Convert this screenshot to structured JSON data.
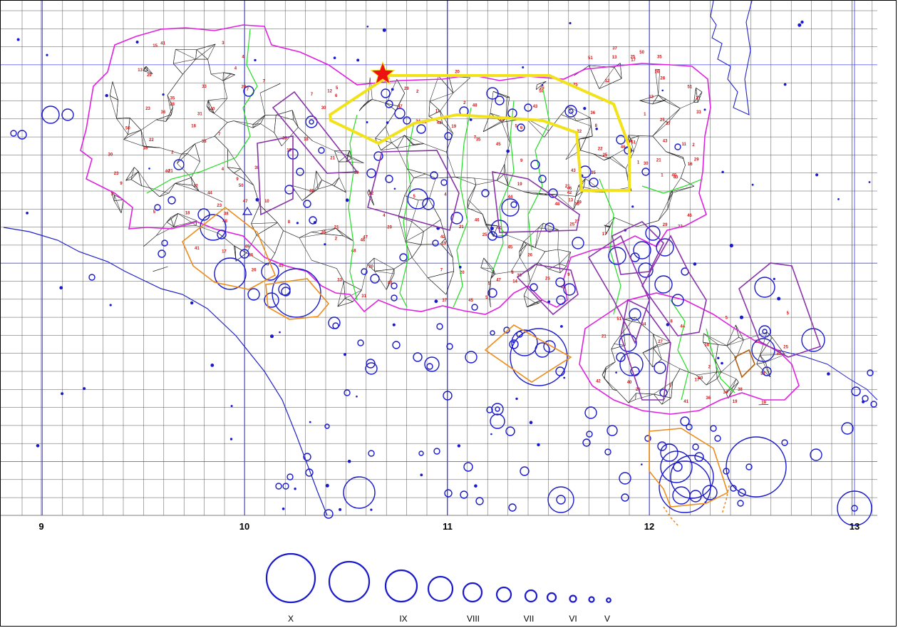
{
  "map": {
    "longitude_labels": [
      "9",
      "10",
      "11",
      "12",
      "13"
    ],
    "intensity_legend": [
      "X",
      "IX",
      "VIII",
      "VII",
      "VI",
      "V"
    ],
    "colors": {
      "grid": "#555555",
      "coastline": "#2020c8",
      "region_border": "#e020e0",
      "district_border": "#2a2a2a",
      "zone_border": "#22dd22",
      "epicenter_circle": "#1a1acc",
      "purple_polygon": "#8833aa",
      "orange_polygon": "#ee8c1a",
      "highlight_polygon": "#f2e21a",
      "star_marker": "#ee1111",
      "district_number": "#d21414"
    },
    "region_numbers": [
      "37",
      "14",
      "32",
      "10",
      "41",
      "46",
      "20",
      "5",
      "33",
      "22",
      "40",
      "35",
      "3",
      "11",
      "21",
      "38",
      "13",
      "15",
      "16",
      "27",
      "44",
      "28",
      "34",
      "19",
      "12",
      "4",
      "45",
      "8",
      "1",
      "17",
      "30",
      "25",
      "26",
      "18",
      "31",
      "50",
      "42",
      "43",
      "24",
      "47",
      "6",
      "2",
      "9",
      "7",
      "49",
      "29",
      "23",
      "39",
      "36",
      "48",
      "51"
    ],
    "icons": {
      "star": "star-marker-icon",
      "triangle": "triangle-marker-icon"
    }
  }
}
